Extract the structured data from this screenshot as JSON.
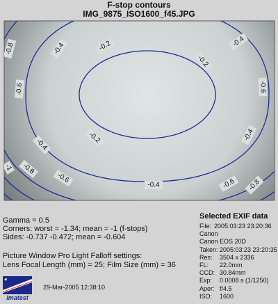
{
  "chart_data": {
    "type": "contour",
    "title": "F-stop contours",
    "subtitle": "IMG_9875_ISO1600_f45.JPG",
    "xlabel": "",
    "ylabel": "",
    "contour_levels": [
      -0.2,
      -0.4,
      -0.6,
      -0.8,
      -1
    ],
    "contour_labels": [
      {
        "text": "-0.2",
        "level": -0.2
      },
      {
        "text": "-0.2",
        "level": -0.2
      },
      {
        "text": "-0.2",
        "level": -0.2
      },
      {
        "text": "-0.4",
        "level": -0.4
      },
      {
        "text": "-0.4",
        "level": -0.4
      },
      {
        "text": "-0.4",
        "level": -0.4
      },
      {
        "text": "-0.4",
        "level": -0.4
      },
      {
        "text": "-0.4",
        "level": -0.4
      },
      {
        "text": "-0.6",
        "level": -0.6
      },
      {
        "text": "-0.6",
        "level": -0.6
      },
      {
        "text": "-0.6",
        "level": -0.6
      },
      {
        "text": "-0.6",
        "level": -0.6
      },
      {
        "text": "-0.8",
        "level": -0.8
      },
      {
        "text": "-0.8",
        "level": -0.8
      },
      {
        "text": "-0.8",
        "level": -0.8
      },
      {
        "text": "-1",
        "level": -1
      }
    ],
    "grid": false,
    "legend": "none"
  },
  "stats": {
    "gamma": "Gamma = 0.5",
    "corners": "Corners: worst = -1.34;  mean = -1 (f-stops)",
    "sides": "Sides: -0.737  -0.472;  mean = -0.604",
    "settings_title": "Picture Window Pro Light Falloff settings:",
    "settings_values": "Lens Focal Length (mm) = 25;  Film Size (mm) = 36"
  },
  "exif": {
    "title": "Selected EXIF data",
    "rows": [
      {
        "key": "File:",
        "value": "2005:03:23 23:20:36"
      },
      {
        "key": "Canon",
        "value": ""
      },
      {
        "key": "Canon EOS 20D",
        "value": ""
      },
      {
        "key": "Taken:",
        "value": "2005:03:23 23:20:35"
      },
      {
        "key": "Res:",
        "value": "3504 x 2336"
      },
      {
        "key": "FL:",
        "value": "22.0mm"
      },
      {
        "key": "CCD:",
        "value": "30.84mm"
      },
      {
        "key": "Exp:",
        "value": "0.0008 s  (1/1250)"
      },
      {
        "key": "Aper:",
        "value": "f/4.5"
      },
      {
        "key": "ISO:",
        "value": "1600"
      }
    ]
  },
  "footer": {
    "logo_text": "Imatest",
    "timestamp": "29-Mar-2005 12:38:10"
  },
  "colors": {
    "contour": "#1c2a9c",
    "background": "#d4d4d4"
  }
}
